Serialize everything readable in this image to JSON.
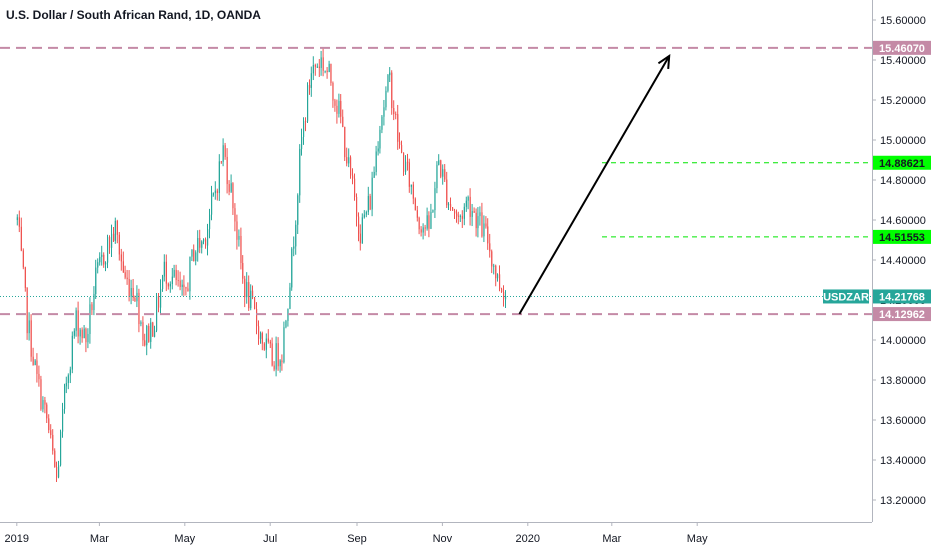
{
  "chart_data": {
    "type": "candlestick",
    "title": "U.S. Dollar / South African Rand, 1D, OANDA",
    "symbol": "USDZAR",
    "x_ticks": [
      "2019",
      "Mar",
      "May",
      "Jul",
      "Sep",
      "Nov",
      "2020",
      "Mar",
      "May"
    ],
    "y_ticks": [
      "15.60000",
      "15.40000",
      "15.20000",
      "15.00000",
      "14.80000",
      "14.60000",
      "14.40000",
      "14.20000",
      "14.00000",
      "13.80000",
      "13.60000",
      "13.40000",
      "13.20000"
    ],
    "ylim": [
      13.09,
      15.7
    ],
    "close_series": {
      "x": [
        "2019-01-01",
        "2019-01-08",
        "2019-01-15",
        "2019-01-22",
        "2019-01-29",
        "2019-02-05",
        "2019-02-12",
        "2019-02-19",
        "2019-02-26",
        "2019-03-05",
        "2019-03-12",
        "2019-03-19",
        "2019-03-26",
        "2019-04-02",
        "2019-04-09",
        "2019-04-16",
        "2019-04-23",
        "2019-04-30",
        "2019-05-07",
        "2019-05-14",
        "2019-05-21",
        "2019-05-28",
        "2019-06-04",
        "2019-06-11",
        "2019-06-18",
        "2019-06-25",
        "2019-07-02",
        "2019-07-09",
        "2019-07-16",
        "2019-07-23",
        "2019-07-30",
        "2019-08-06",
        "2019-08-13",
        "2019-08-20",
        "2019-08-27",
        "2019-09-03",
        "2019-09-10",
        "2019-09-17",
        "2019-09-24",
        "2019-10-01",
        "2019-10-08",
        "2019-10-15",
        "2019-10-22",
        "2019-10-29",
        "2019-11-05",
        "2019-11-12",
        "2019-11-19",
        "2019-11-26",
        "2019-12-03",
        "2019-12-10",
        "2019-12-17"
      ],
      "close": [
        14.6,
        14.1,
        13.8,
        13.6,
        13.3,
        13.8,
        14.1,
        14.0,
        14.3,
        14.45,
        14.55,
        14.3,
        14.25,
        14.0,
        14.1,
        14.35,
        14.3,
        14.2,
        14.45,
        14.5,
        14.7,
        14.95,
        14.7,
        14.3,
        14.15,
        14.0,
        13.9,
        13.95,
        14.4,
        15.0,
        15.35,
        15.4,
        15.3,
        15.1,
        14.8,
        14.55,
        14.7,
        15.1,
        15.3,
        14.95,
        14.8,
        14.6,
        14.55,
        14.9,
        14.7,
        14.6,
        14.7,
        14.6,
        14.5,
        14.3,
        14.22
      ]
    },
    "levels": [
      {
        "value": 15.4607,
        "label": "15.46070",
        "style": "dashed",
        "color": "#c48aa6"
      },
      {
        "value": 14.12962,
        "label": "14.12962",
        "style": "dashed",
        "color": "#c48aa6"
      },
      {
        "value": 14.88621,
        "label": "14.88621",
        "style": "dashed",
        "color": "#00e600"
      },
      {
        "value": 14.51553,
        "label": "14.51553",
        "style": "dashed",
        "color": "#00e600"
      }
    ],
    "last_price": {
      "value": 14.21768,
      "label": "14.21768",
      "color": "#26a69a"
    },
    "arrow": {
      "from": {
        "date": "2019-12-26",
        "price": 14.13
      },
      "to": {
        "date": "2020-04-11",
        "price": 15.42
      }
    },
    "colors": {
      "up": "#26a69a",
      "down": "#ef5350"
    }
  }
}
